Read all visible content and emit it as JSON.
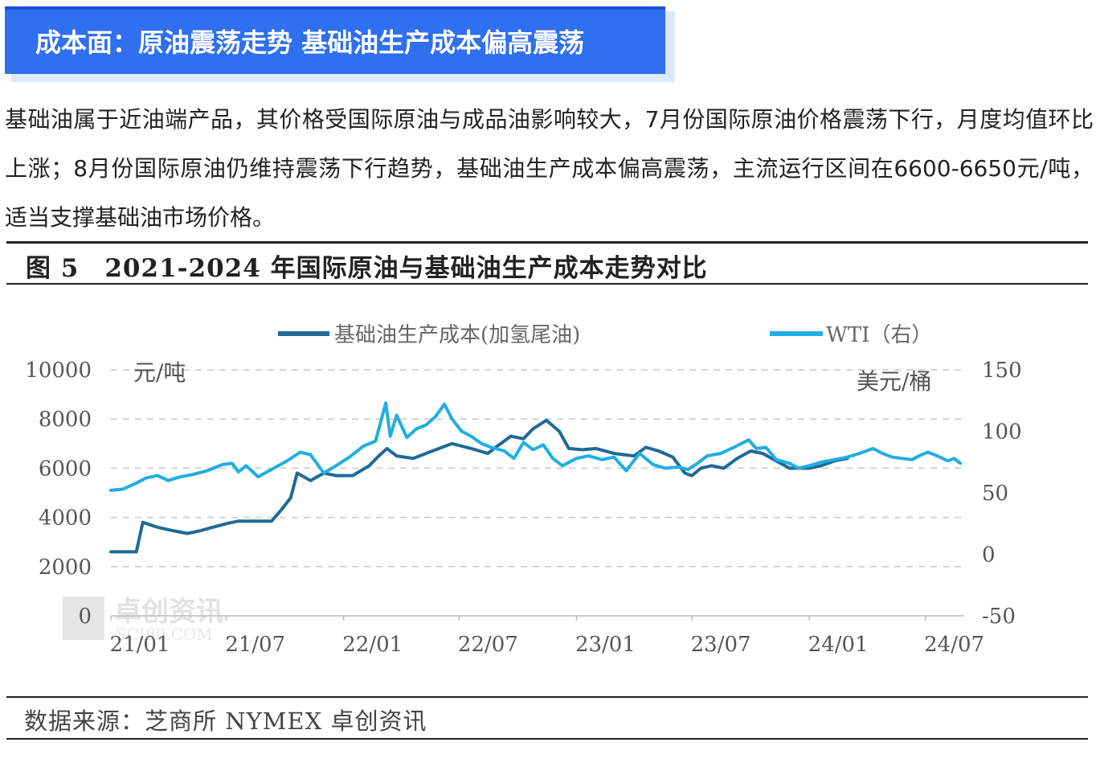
{
  "banner": {
    "title": "成本面：原油震荡走势 基础油生产成本偏高震荡"
  },
  "paragraph": "基础油属于近油端产品，其价格受国际原油与成品油影响较大，7月份国际原油价格震荡下行，月度均值环比上涨；8月份国际原油仍维持震荡下行趋势，基础油生产成本偏高震荡，主流运行区间在6600-6650元/吨，适当支撑基础油市场价格。",
  "figure": {
    "title": "图 5　2021-2024 年国际原油与基础油生产成本走势对比",
    "source": "数据来源：芝商所 NYMEX 卓创资讯"
  },
  "watermark": {
    "text": "卓创资讯",
    "subtext": "SCI99.COM"
  },
  "colors": {
    "base_oil": "#1f6a96",
    "wti": "#20aee2",
    "grid": "#c8c8c8",
    "axis_text": "#555555",
    "banner": "#2f6ff0"
  },
  "chart_data": {
    "type": "line",
    "legend": [
      "基础油生产成本(加氢尾油)",
      "WTI（右）"
    ],
    "legend_position": "top",
    "left_unit": "元/吨",
    "right_unit": "美元/桶",
    "x_tick_labels": [
      "21/01",
      "21/07",
      "22/01",
      "22/07",
      "23/01",
      "23/07",
      "24/01",
      "24/07"
    ],
    "x_range": [
      "2021-01",
      "2024-08"
    ],
    "y_left": {
      "ticks": [
        0,
        2000,
        4000,
        6000,
        8000,
        10000
      ],
      "range": [
        0,
        10000
      ]
    },
    "y_right": {
      "ticks": [
        -50,
        0,
        50,
        100,
        150
      ],
      "range": [
        -50,
        150
      ]
    },
    "grid": "horizontal dashed",
    "series": [
      {
        "name": "基础油生产成本(加氢尾油)",
        "axis": "left",
        "points": [
          [
            "2021-01-01",
            2600
          ],
          [
            "2021-02-10",
            2600
          ],
          [
            "2021-02-20",
            3800
          ],
          [
            "2021-03-15",
            3600
          ],
          [
            "2021-04-10",
            3450
          ],
          [
            "2021-05-01",
            3350
          ],
          [
            "2021-05-20",
            3450
          ],
          [
            "2021-06-10",
            3600
          ],
          [
            "2021-07-01",
            3750
          ],
          [
            "2021-07-20",
            3850
          ],
          [
            "2021-08-20",
            3850
          ],
          [
            "2021-09-10",
            3850
          ],
          [
            "2021-09-25",
            4300
          ],
          [
            "2021-10-10",
            4800
          ],
          [
            "2021-10-20",
            5800
          ],
          [
            "2021-11-10",
            5500
          ],
          [
            "2021-12-01",
            5800
          ],
          [
            "2021-12-20",
            5700
          ],
          [
            "2022-01-15",
            5700
          ],
          [
            "2022-02-10",
            6100
          ],
          [
            "2022-02-25",
            6500
          ],
          [
            "2022-03-10",
            6800
          ],
          [
            "2022-03-25",
            6500
          ],
          [
            "2022-04-20",
            6400
          ],
          [
            "2022-05-20",
            6700
          ],
          [
            "2022-06-20",
            7000
          ],
          [
            "2022-07-20",
            6800
          ],
          [
            "2022-08-15",
            6600
          ],
          [
            "2022-08-30",
            6900
          ],
          [
            "2022-09-20",
            7300
          ],
          [
            "2022-10-10",
            7200
          ],
          [
            "2022-10-25",
            7600
          ],
          [
            "2022-11-15",
            7950
          ],
          [
            "2022-12-05",
            7500
          ],
          [
            "2022-12-20",
            6800
          ],
          [
            "2023-01-10",
            6750
          ],
          [
            "2023-02-01",
            6800
          ],
          [
            "2023-03-01",
            6600
          ],
          [
            "2023-04-01",
            6500
          ],
          [
            "2023-04-20",
            6850
          ],
          [
            "2023-05-10",
            6700
          ],
          [
            "2023-06-01",
            6450
          ],
          [
            "2023-06-20",
            5800
          ],
          [
            "2023-07-01",
            5700
          ],
          [
            "2023-07-15",
            6000
          ],
          [
            "2023-08-01",
            6100
          ],
          [
            "2023-08-20",
            6000
          ],
          [
            "2023-09-10",
            6400
          ],
          [
            "2023-10-01",
            6700
          ],
          [
            "2023-10-20",
            6600
          ],
          [
            "2023-11-10",
            6300
          ],
          [
            "2023-12-01",
            6000
          ],
          [
            "2024-01-01",
            6000
          ],
          [
            "2024-01-20",
            6100
          ],
          [
            "2024-02-10",
            6300
          ],
          [
            "2024-03-01",
            6400
          ]
        ]
      },
      {
        "name": "WTI（右）",
        "axis": "right",
        "points": [
          [
            "2021-01-01",
            52
          ],
          [
            "2021-01-20",
            53
          ],
          [
            "2021-02-10",
            58
          ],
          [
            "2021-02-25",
            62
          ],
          [
            "2021-03-15",
            64
          ],
          [
            "2021-04-01",
            60
          ],
          [
            "2021-04-20",
            63
          ],
          [
            "2021-05-10",
            65
          ],
          [
            "2021-06-01",
            68
          ],
          [
            "2021-06-25",
            73
          ],
          [
            "2021-07-10",
            74
          ],
          [
            "2021-07-20",
            67
          ],
          [
            "2021-08-01",
            72
          ],
          [
            "2021-08-20",
            63
          ],
          [
            "2021-09-10",
            69
          ],
          [
            "2021-10-01",
            75
          ],
          [
            "2021-10-25",
            83
          ],
          [
            "2021-11-10",
            81
          ],
          [
            "2021-12-01",
            66
          ],
          [
            "2021-12-20",
            72
          ],
          [
            "2022-01-10",
            79
          ],
          [
            "2022-02-01",
            88
          ],
          [
            "2022-02-20",
            92
          ],
          [
            "2022-03-08",
            123
          ],
          [
            "2022-03-15",
            96
          ],
          [
            "2022-03-25",
            113
          ],
          [
            "2022-04-10",
            95
          ],
          [
            "2022-04-25",
            102
          ],
          [
            "2022-05-10",
            105
          ],
          [
            "2022-05-25",
            112
          ],
          [
            "2022-06-08",
            122
          ],
          [
            "2022-06-20",
            110
          ],
          [
            "2022-07-05",
            100
          ],
          [
            "2022-07-20",
            96
          ],
          [
            "2022-08-05",
            90
          ],
          [
            "2022-08-20",
            87
          ],
          [
            "2022-09-10",
            84
          ],
          [
            "2022-09-25",
            78
          ],
          [
            "2022-10-10",
            91
          ],
          [
            "2022-10-25",
            85
          ],
          [
            "2022-11-10",
            89
          ],
          [
            "2022-11-25",
            78
          ],
          [
            "2022-12-10",
            72
          ],
          [
            "2023-01-01",
            78
          ],
          [
            "2023-01-20",
            80
          ],
          [
            "2023-02-10",
            77
          ],
          [
            "2023-03-01",
            79
          ],
          [
            "2023-03-20",
            68
          ],
          [
            "2023-04-10",
            82
          ],
          [
            "2023-05-01",
            73
          ],
          [
            "2023-05-20",
            70
          ],
          [
            "2023-06-10",
            71
          ],
          [
            "2023-06-25",
            69
          ],
          [
            "2023-07-10",
            74
          ],
          [
            "2023-07-25",
            80
          ],
          [
            "2023-08-15",
            82
          ],
          [
            "2023-09-05",
            87
          ],
          [
            "2023-09-28",
            93
          ],
          [
            "2023-10-10",
            86
          ],
          [
            "2023-10-25",
            87
          ],
          [
            "2023-11-10",
            77
          ],
          [
            "2023-12-01",
            74
          ],
          [
            "2023-12-15",
            70
          ],
          [
            "2024-01-01",
            72
          ],
          [
            "2024-01-20",
            75
          ],
          [
            "2024-02-10",
            77
          ],
          [
            "2024-03-01",
            79
          ],
          [
            "2024-03-20",
            82
          ],
          [
            "2024-04-10",
            86
          ],
          [
            "2024-04-25",
            82
          ],
          [
            "2024-05-10",
            79
          ],
          [
            "2024-05-25",
            78
          ],
          [
            "2024-06-10",
            77
          ],
          [
            "2024-06-25",
            81
          ],
          [
            "2024-07-05",
            83
          ],
          [
            "2024-07-20",
            80
          ],
          [
            "2024-08-05",
            76
          ],
          [
            "2024-08-15",
            78
          ],
          [
            "2024-08-25",
            74
          ]
        ]
      }
    ]
  }
}
